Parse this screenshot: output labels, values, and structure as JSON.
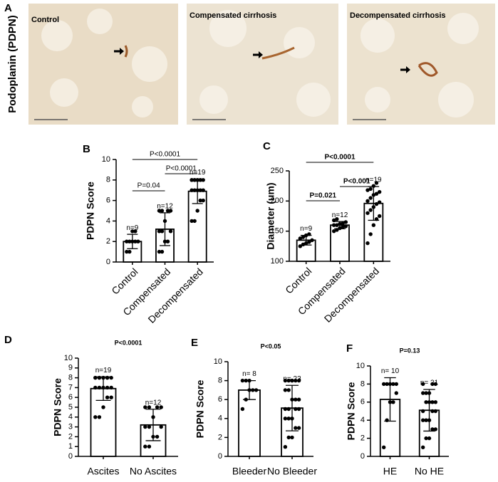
{
  "panel_a": {
    "letter": "A",
    "ylabel": "Podoplanin (PDPN)",
    "images": [
      {
        "label": "Control"
      },
      {
        "label": "Compensated cirrhosis"
      },
      {
        "label": "Decompensated cirrhosis"
      }
    ]
  },
  "chart_data": [
    {
      "panel": "B",
      "type": "bar",
      "ylabel": "PDPN Score",
      "categories": [
        "Control",
        "Compensated",
        "Decompensated"
      ],
      "values": [
        2.0,
        3.2,
        6.9
      ],
      "errors": [
        0.7,
        1.6,
        1.2
      ],
      "n_labels": [
        "n=9",
        "n=12",
        "n=19"
      ],
      "points": [
        [
          1,
          1,
          2,
          2,
          2,
          2,
          2,
          3,
          3
        ],
        [
          1,
          1,
          2,
          2,
          3,
          3,
          3,
          4,
          5,
          5,
          5,
          5
        ],
        [
          4,
          4,
          5,
          6,
          6,
          7,
          7,
          7,
          7,
          7,
          8,
          8,
          8,
          8,
          8,
          8,
          8,
          8,
          8
        ]
      ],
      "annotations": [
        "P=0.04",
        "P<0.0001",
        "P<0.0001"
      ],
      "ylim": [
        0,
        10
      ],
      "yticks": [
        0,
        2,
        4,
        6,
        8,
        10
      ]
    },
    {
      "panel": "C",
      "type": "bar",
      "ylabel": "Diameter (um)",
      "categories": [
        "Control",
        "Compensated",
        "Decompensated"
      ],
      "values": [
        135,
        160,
        196
      ],
      "errors": [
        8,
        6,
        28
      ],
      "n_labels": [
        "n=9",
        "n=12",
        "n=19"
      ],
      "points": [
        [
          125,
          128,
          130,
          132,
          135,
          138,
          140,
          143,
          145
        ],
        [
          150,
          152,
          155,
          157,
          158,
          160,
          160,
          162,
          163,
          165,
          168,
          170
        ],
        [
          130,
          145,
          160,
          170,
          175,
          180,
          185,
          190,
          195,
          198,
          200,
          205,
          210,
          212,
          215,
          218,
          220,
          225,
          230
        ]
      ],
      "annotations": [
        "P=0.021",
        "P<0.001",
        "P<0.0001"
      ],
      "ylim": [
        100,
        250
      ],
      "yticks": [
        100,
        150,
        200,
        250
      ]
    },
    {
      "panel": "D",
      "type": "bar",
      "ylabel": "PDPN Score",
      "categories": [
        "Ascites",
        "No Ascites"
      ],
      "values": [
        6.9,
        3.2
      ],
      "errors": [
        1.2,
        1.6
      ],
      "n_labels": [
        "n=19",
        "n=12"
      ],
      "points": [
        [
          4,
          4,
          5,
          6,
          6,
          7,
          7,
          7,
          7,
          7,
          8,
          8,
          8,
          8,
          8,
          8,
          8,
          8,
          8
        ],
        [
          1,
          1,
          2,
          2,
          3,
          3,
          3,
          4,
          5,
          5,
          5,
          5
        ]
      ],
      "annotations": [
        "P<0.0001"
      ],
      "ylim": [
        0,
        10
      ],
      "yticks": [
        0,
        1,
        2,
        3,
        4,
        5,
        6,
        7,
        8,
        9,
        10
      ]
    },
    {
      "panel": "E",
      "type": "bar",
      "ylabel": "PDPN Score",
      "categories": [
        "Bleeder",
        "No Bleeder"
      ],
      "values": [
        7.0,
        5.1
      ],
      "errors": [
        1.0,
        2.4
      ],
      "n_labels": [
        "n= 8",
        "n= 23"
      ],
      "points": [
        [
          5,
          6,
          7,
          7,
          7,
          8,
          8,
          8
        ],
        [
          1,
          2,
          2,
          3,
          3,
          4,
          4,
          4,
          5,
          5,
          5,
          5,
          6,
          6,
          6,
          7,
          7,
          8,
          8,
          8,
          8,
          8,
          8
        ]
      ],
      "annotations": [
        "P<0.05"
      ],
      "ylim": [
        0,
        10
      ],
      "yticks": [
        0,
        2,
        4,
        6,
        8,
        10
      ]
    },
    {
      "panel": "F",
      "type": "bar",
      "ylabel": "PDPN Score",
      "categories": [
        "HE",
        "No HE"
      ],
      "values": [
        6.3,
        5.1
      ],
      "errors": [
        2.4,
        2.3
      ],
      "n_labels": [
        "n= 10",
        "n= 21"
      ],
      "points": [
        [
          1,
          4,
          6,
          6,
          7,
          8,
          8,
          8,
          8,
          8
        ],
        [
          1,
          2,
          2,
          3,
          3,
          4,
          4,
          4,
          5,
          5,
          5,
          6,
          6,
          6,
          6,
          7,
          7,
          7,
          8,
          8,
          8
        ]
      ],
      "annotations": [
        "P=0.13"
      ],
      "ylim": [
        0,
        10
      ],
      "yticks": [
        0,
        2,
        4,
        6,
        8,
        10
      ]
    }
  ]
}
